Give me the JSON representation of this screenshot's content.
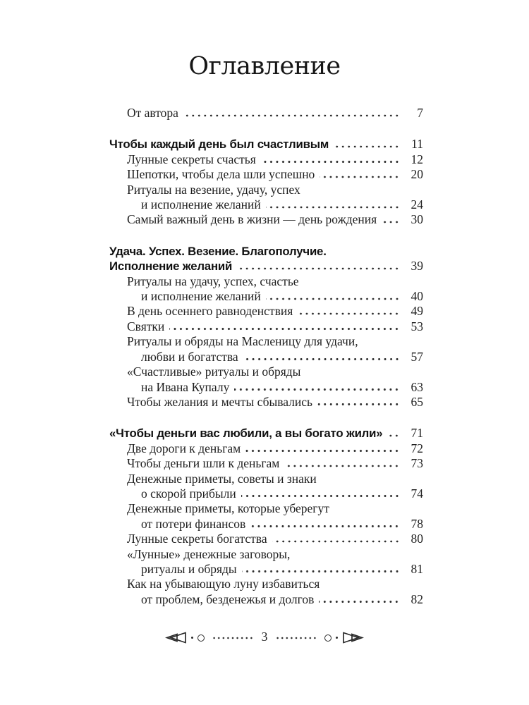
{
  "page": {
    "title": "Оглавление",
    "footer": {
      "page_number": "3",
      "left_icon": "double-triangle-left-icon",
      "right_icon": "double-triangle-right-icon",
      "side_icons": "ring-circle, tiny-dot, dotted-rule"
    }
  },
  "colors": {
    "background": "#ffffff",
    "text": "#1f1f1f",
    "heading_text": "#111111",
    "dot_leader": "#2e2e2e"
  },
  "toc": {
    "entries": [
      {
        "type": "item",
        "lines": [
          "От автора"
        ],
        "page": "7"
      },
      {
        "type": "section",
        "lines": [
          "Чтобы каждый день был счастливым"
        ],
        "page": "11"
      },
      {
        "type": "item",
        "lines": [
          "Лунные секреты счастья"
        ],
        "page": "12"
      },
      {
        "type": "item",
        "lines": [
          "Шепотки, чтобы дела шли успешно"
        ],
        "page": "20"
      },
      {
        "type": "item",
        "lines": [
          "Ритуалы на везение, удачу, успех",
          "и исполнение желаний"
        ],
        "page": "24"
      },
      {
        "type": "item",
        "lines": [
          "Самый важный день в жизни — день рождения"
        ],
        "page": "30"
      },
      {
        "type": "section",
        "lines": [
          "Удача. Успех. Везение. Благополучие.",
          "Исполнение желаний"
        ],
        "page": "39"
      },
      {
        "type": "item",
        "lines": [
          "Ритуалы на удачу, успех, счастье",
          "и исполнение желаний"
        ],
        "page": "40"
      },
      {
        "type": "item",
        "lines": [
          "В день осеннего равноденствия"
        ],
        "page": "49"
      },
      {
        "type": "item",
        "lines": [
          "Святки"
        ],
        "page": "53"
      },
      {
        "type": "item",
        "lines": [
          "Ритуалы и обряды на Масленицу для удачи,",
          "любви и богатства"
        ],
        "page": "57"
      },
      {
        "type": "item",
        "lines": [
          "«Счастливые» ритуалы и обряды",
          "на Ивана Купалу"
        ],
        "page": "63"
      },
      {
        "type": "item",
        "lines": [
          "Чтобы желания и мечты сбывались"
        ],
        "page": "65"
      },
      {
        "type": "section",
        "lines": [
          "«Чтобы деньги вас любили, а вы богато жили»"
        ],
        "page": "71"
      },
      {
        "type": "item",
        "lines": [
          "Две дороги к деньгам"
        ],
        "page": "72"
      },
      {
        "type": "item",
        "lines": [
          "Чтобы деньги шли к деньгам"
        ],
        "page": "73"
      },
      {
        "type": "item",
        "lines": [
          "Денежные приметы, советы и знаки",
          "о скорой прибыли"
        ],
        "page": "74"
      },
      {
        "type": "item",
        "lines": [
          "Денежные приметы, которые уберегут",
          "от потери финансов"
        ],
        "page": "78"
      },
      {
        "type": "item",
        "lines": [
          "Лунные секреты богатства"
        ],
        "page": "80"
      },
      {
        "type": "item",
        "lines": [
          "«Лунные» денежные заговоры,",
          "ритуалы и обряды"
        ],
        "page": "81"
      },
      {
        "type": "item",
        "lines": [
          "Как на убывающую луну избавиться",
          "от проблем, безденежья и долгов"
        ],
        "page": "82"
      }
    ]
  }
}
